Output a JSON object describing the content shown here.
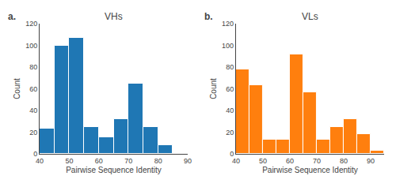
{
  "chart_data": [
    {
      "type": "histogram",
      "title": "VHs",
      "annotations": [
        "a."
      ],
      "bins": [
        40,
        45,
        50,
        55,
        60,
        65,
        70,
        75,
        80,
        85,
        90
      ],
      "values": [
        23,
        100,
        107,
        25,
        15,
        32,
        65,
        25,
        8,
        0
      ],
      "x_label": "Pairwise Sequence Identity",
      "y_label": "Count",
      "xlim": [
        40,
        90
      ],
      "xticks": [
        40,
        50,
        60,
        70,
        80,
        90
      ],
      "ylim": [
        0,
        120
      ],
      "yticks": [
        0,
        20,
        40,
        60,
        80,
        100,
        120
      ],
      "grid": false
    },
    {
      "type": "histogram",
      "title": "VLs",
      "annotations": [
        "b."
      ],
      "bins": [
        40,
        45,
        50,
        55,
        60,
        65,
        70,
        75,
        80,
        85,
        90,
        95
      ],
      "values": [
        78,
        63,
        13,
        13,
        92,
        57,
        13,
        25,
        32,
        18,
        3
      ],
      "x_label": "Pairwise Sequence Identity",
      "y_label": "Count",
      "xlim": [
        40,
        95
      ],
      "xticks": [
        40,
        50,
        60,
        70,
        80,
        90
      ],
      "ylim": [
        0,
        120
      ],
      "yticks": [
        0,
        20,
        40,
        60,
        80,
        100,
        120
      ],
      "grid": false
    }
  ]
}
